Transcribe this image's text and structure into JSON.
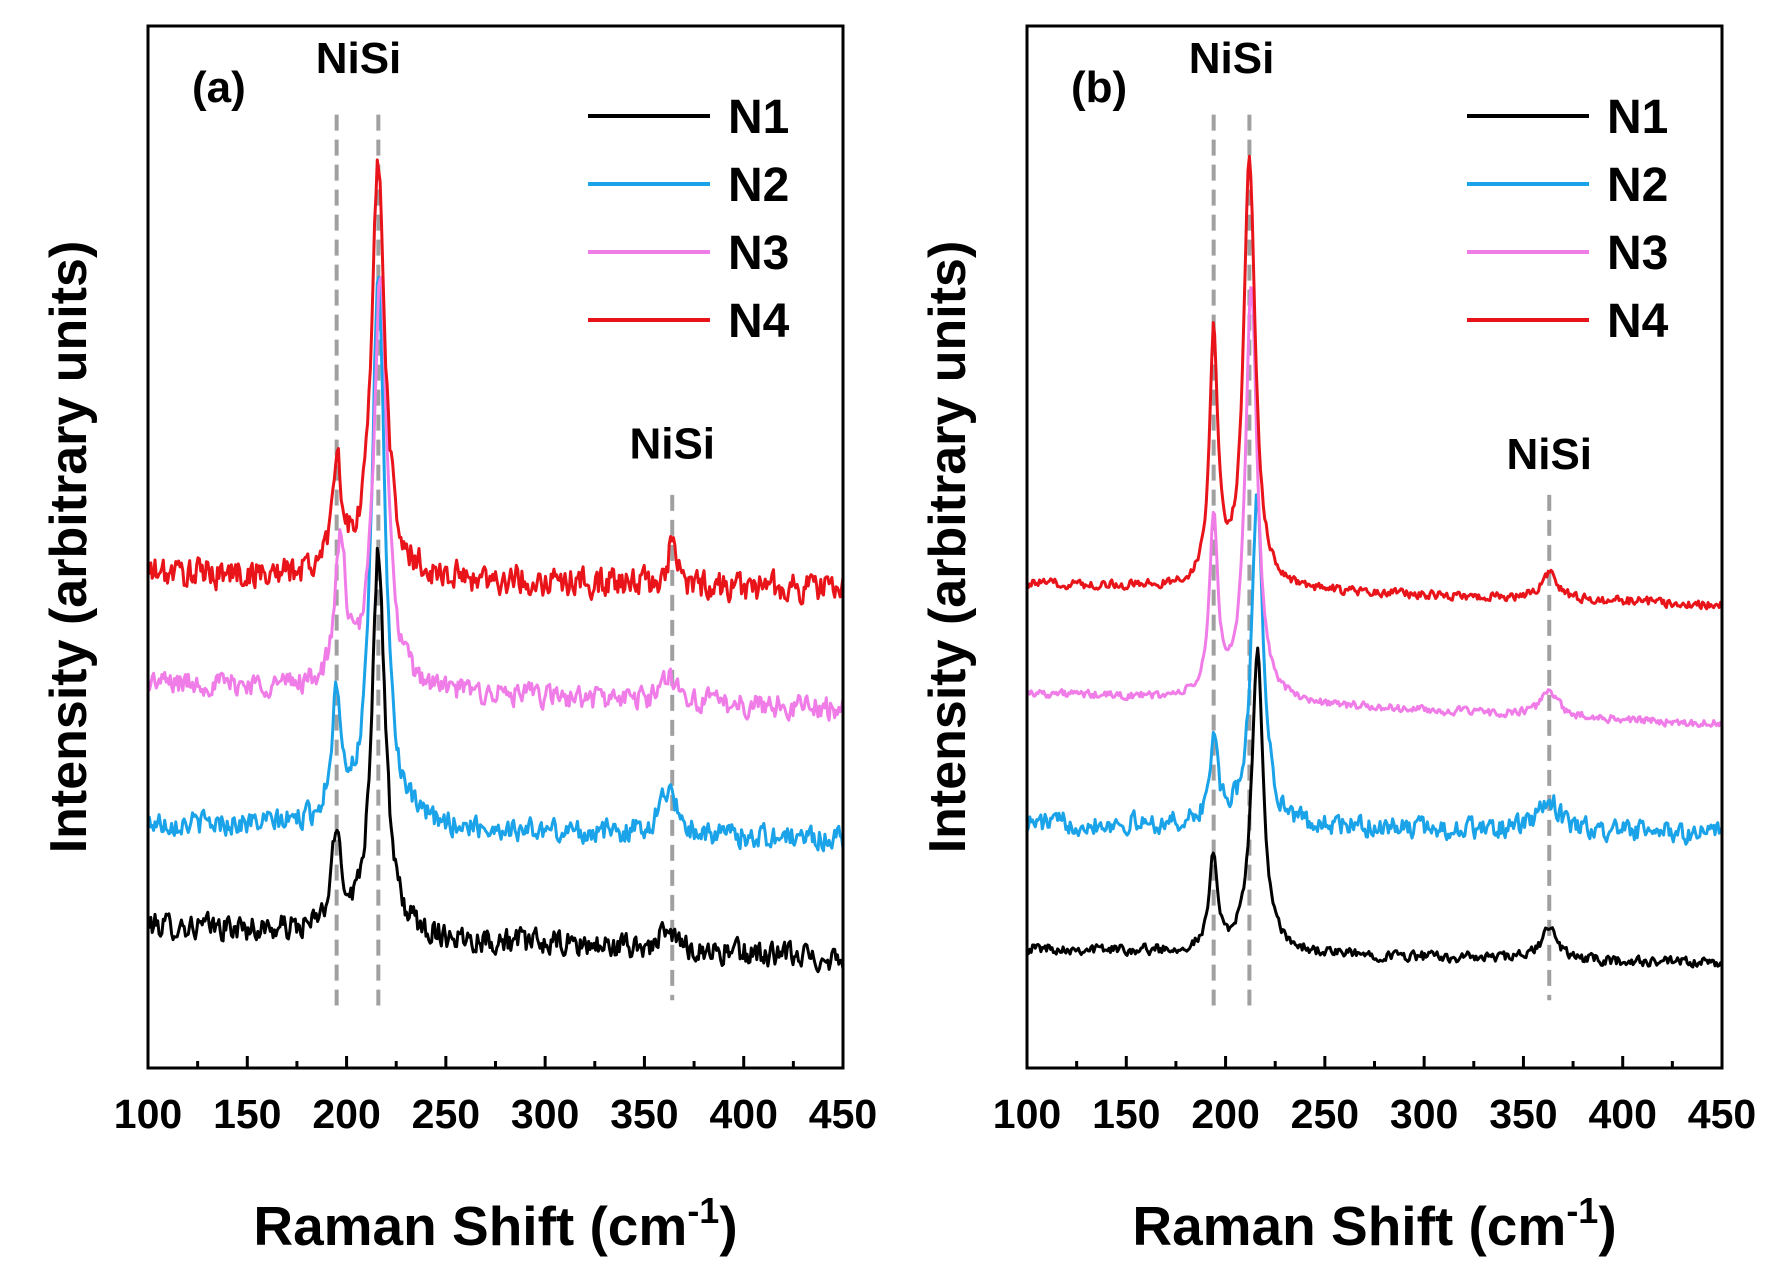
{
  "colors": {
    "N1": "#000000",
    "N2": "#1aa3e8",
    "N3": "#f07ce8",
    "N4": "#e8141a",
    "ref": "#a0a0a0"
  },
  "chart_data": [
    {
      "type": "line",
      "panel_label": "(a)",
      "xlabel": "Raman Shift (cm",
      "xlabel_sup": "-1",
      "xlabel_close": ")",
      "ylabel": "Intensity (arbitrary units)",
      "xlim": [
        100,
        450
      ],
      "ylim": [
        0,
        100
      ],
      "xticks": [
        100,
        150,
        200,
        250,
        300,
        350,
        400,
        450
      ],
      "xtick_labels": [
        "100",
        "150",
        "200",
        "250",
        "300",
        "350",
        "400",
        "450"
      ],
      "legend": [
        "N1",
        "N2",
        "N3",
        "N4"
      ],
      "legend_position": "top-right",
      "reference_lines": [
        195,
        216,
        364
      ],
      "annotations": [
        {
          "text": "NiSi",
          "x": 206,
          "y": 95.5
        },
        {
          "text": "NiSi",
          "x": 364,
          "y": 58.5
        }
      ],
      "series": [
        {
          "name": "N1",
          "baseline": 13.7,
          "baseline_end": 10.5,
          "noise": 1.1,
          "peaks": [
            {
              "x": 195,
              "h": 9,
              "w": 3
            },
            {
              "x": 216,
              "h": 37,
              "w": 4
            },
            {
              "x": 362,
              "h": 1.5,
              "w": 6
            }
          ]
        },
        {
          "name": "N2",
          "baseline": 23.5,
          "baseline_end": 22.0,
          "noise": 1.0,
          "peaks": [
            {
              "x": 195,
              "h": 12,
              "w": 3
            },
            {
              "x": 216,
              "h": 53,
              "w": 4
            },
            {
              "x": 362,
              "h": 4.5,
              "w": 5
            }
          ]
        },
        {
          "name": "N3",
          "baseline": 37.0,
          "baseline_end": 34.5,
          "noise": 1.0,
          "peaks": [
            {
              "x": 197,
              "h": 14,
              "w": 3
            },
            {
              "x": 217,
              "h": 40,
              "w": 4
            },
            {
              "x": 363,
              "h": 2.5,
              "w": 5
            }
          ]
        },
        {
          "name": "N4",
          "baseline": 47.5,
          "baseline_end": 46.0,
          "noise": 1.3,
          "peaks": [
            {
              "x": 195,
              "h": 11,
              "w": 3
            },
            {
              "x": 216,
              "h": 40,
              "w": 4
            },
            {
              "x": 364,
              "h": 4,
              "w": 2.5
            }
          ]
        }
      ]
    },
    {
      "type": "line",
      "panel_label": "(b)",
      "xlabel": "Raman Shift (cm",
      "xlabel_sup": "-1",
      "xlabel_close": ")",
      "ylabel": "Intensity (arbitrary units)",
      "xlim": [
        100,
        450
      ],
      "ylim": [
        0,
        100
      ],
      "xticks": [
        100,
        150,
        200,
        250,
        300,
        350,
        400,
        450
      ],
      "xtick_labels": [
        "100",
        "150",
        "200",
        "250",
        "300",
        "350",
        "400",
        "450"
      ],
      "legend": [
        "N1",
        "N2",
        "N3",
        "N4"
      ],
      "legend_position": "top-right",
      "reference_lines": [
        194,
        212,
        363
      ],
      "annotations": [
        {
          "text": "NiSi",
          "x": 203,
          "y": 95.5
        },
        {
          "text": "NiSi",
          "x": 363,
          "y": 57.5
        }
      ],
      "series": [
        {
          "name": "N1",
          "baseline": 11.5,
          "baseline_end": 10.0,
          "noise": 0.45,
          "peaks": [
            {
              "x": 194,
              "h": 9,
              "w": 2.5
            },
            {
              "x": 216,
              "h": 29,
              "w": 3.5
            },
            {
              "x": 363,
              "h": 3,
              "w": 5
            }
          ]
        },
        {
          "name": "N2",
          "baseline": 23.5,
          "baseline_end": 22.5,
          "noise": 0.9,
          "peaks": [
            {
              "x": 194,
              "h": 8,
              "w": 2.5
            },
            {
              "x": 216,
              "h": 32,
              "w": 3.5
            },
            {
              "x": 363,
              "h": 3,
              "w": 6
            }
          ]
        },
        {
          "name": "N3",
          "baseline": 36.0,
          "baseline_end": 33.0,
          "noise": 0.35,
          "peaks": [
            {
              "x": 194,
              "h": 17,
              "w": 2.5
            },
            {
              "x": 213,
              "h": 40,
              "w": 3.5
            },
            {
              "x": 363,
              "h": 2.5,
              "w": 5
            }
          ]
        },
        {
          "name": "N4",
          "baseline": 46.5,
          "baseline_end": 44.5,
          "noise": 0.4,
          "peaks": [
            {
              "x": 194,
              "h": 24,
              "w": 2.5
            },
            {
              "x": 212,
              "h": 41,
              "w": 3.5
            },
            {
              "x": 363,
              "h": 2.5,
              "w": 5
            }
          ]
        }
      ]
    }
  ]
}
